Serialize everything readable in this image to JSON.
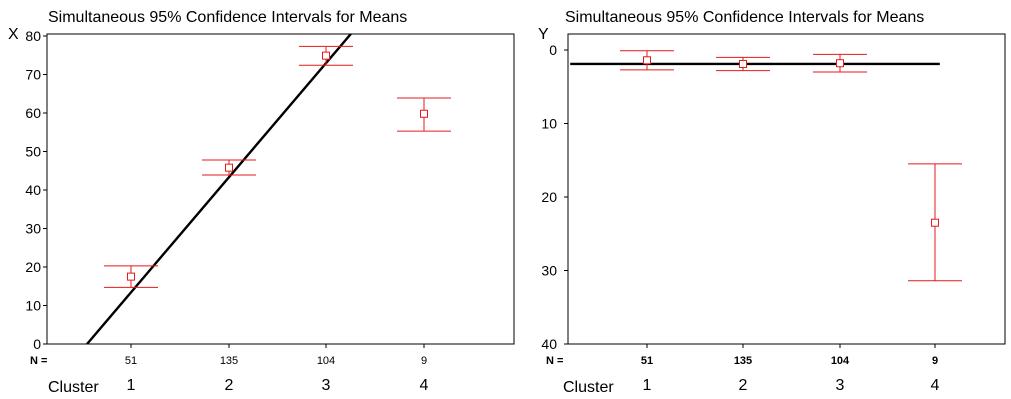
{
  "chart_data": [
    {
      "type": "errorbar",
      "title": "Simultaneous 95% Confidence Intervals for Means",
      "ylabel": "X",
      "xlabel": "Cluster",
      "n_label": "N =",
      "categories": [
        "1",
        "2",
        "3",
        "4"
      ],
      "n_values": [
        "51",
        "135",
        "104",
        "9"
      ],
      "ylim": [
        0,
        80
      ],
      "y_reversed": false,
      "yticks": [
        "0",
        "10",
        "20",
        "30",
        "40",
        "50",
        "60",
        "70",
        "80"
      ],
      "means": [
        17.5,
        45.8,
        74.9,
        59.8
      ],
      "lower": [
        14.7,
        43.9,
        72.4,
        55.3
      ],
      "upper": [
        20.3,
        47.8,
        77.3,
        63.9
      ],
      "reference_line": {
        "x": [
          0.55,
          3.3
        ],
        "y": [
          0,
          82
        ]
      }
    },
    {
      "type": "errorbar",
      "title": "Simultaneous 95% Confidence Intervals for Means",
      "ylabel": "Y",
      "xlabel": "Cluster",
      "n_label": "N =",
      "categories": [
        "1",
        "2",
        "3",
        "4"
      ],
      "n_values": [
        "51",
        "135",
        "104",
        "9"
      ],
      "ylim": [
        0,
        40
      ],
      "y_reversed": true,
      "yticks": [
        "0",
        "10",
        "20",
        "30",
        "40"
      ],
      "means": [
        1.4,
        1.9,
        1.8,
        23.5
      ],
      "lower": [
        0.1,
        1.0,
        0.6,
        15.5
      ],
      "upper": [
        2.7,
        2.8,
        3.0,
        31.4
      ],
      "reference_line": {
        "x": [
          0.2,
          4.05
        ],
        "y": [
          1.9,
          1.9
        ]
      }
    }
  ]
}
